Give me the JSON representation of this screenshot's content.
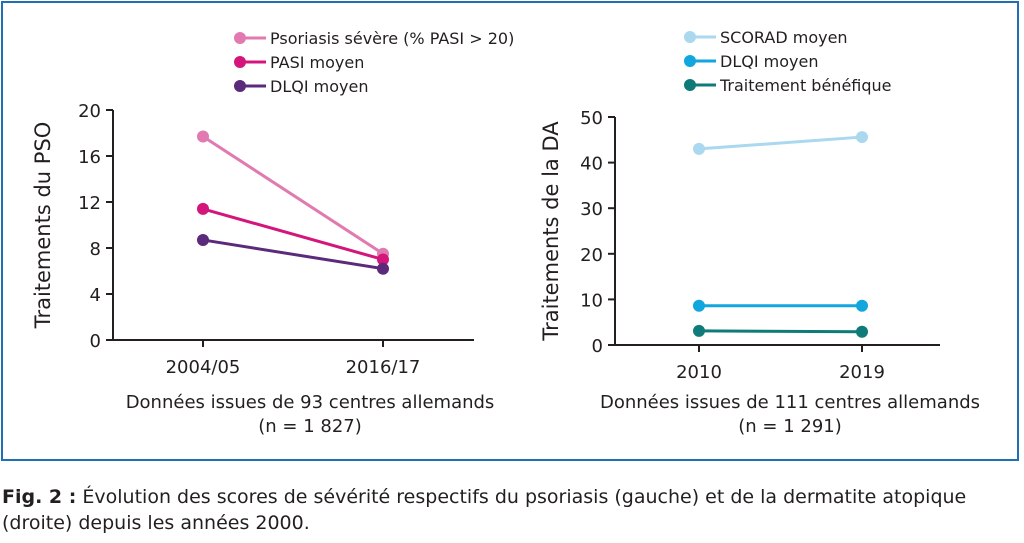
{
  "chart_data": [
    {
      "type": "line",
      "ylabel": "Traitements du PSO",
      "categories": [
        "2004/05",
        "2016/17"
      ],
      "ylim": [
        0,
        20
      ],
      "yticks": [
        0,
        4,
        8,
        12,
        16,
        20
      ],
      "legend_placement": "top",
      "series": [
        {
          "name": "Psoriasis sévère (% PASI > 20)",
          "color": "#e07ab0",
          "values": [
            17.7,
            7.5
          ]
        },
        {
          "name": "PASI moyen",
          "color": "#d4157c",
          "values": [
            11.4,
            7.0
          ]
        },
        {
          "name": "DLQI moyen",
          "color": "#5b2a7a",
          "values": [
            8.7,
            6.2
          ]
        }
      ],
      "subtitle_line1": "Données issues de 93 centres allemands",
      "subtitle_line2": "(n = 1 827)"
    },
    {
      "type": "line",
      "ylabel": "Traitements de la DA",
      "categories": [
        "2010",
        "2019"
      ],
      "ylim": [
        0,
        50
      ],
      "yticks": [
        0,
        10,
        20,
        30,
        40,
        50
      ],
      "legend_placement": "top",
      "series": [
        {
          "name": "SCORAD moyen",
          "color": "#a9d8ef",
          "values": [
            43.0,
            45.6
          ]
        },
        {
          "name": "DLQI moyen",
          "color": "#11a6de",
          "values": [
            8.6,
            8.6
          ]
        },
        {
          "name": "Traitement bénéfique",
          "color": "#0f7b78",
          "values": [
            3.1,
            2.9
          ]
        }
      ],
      "subtitle_line1": "Données issues de 111 centres allemands",
      "subtitle_line2": "(n = 1 291)"
    }
  ],
  "caption": {
    "label": "Fig. 2 :",
    "text": " Évolution des scores de sévérité respectifs du psoriasis (gauche) et de la dermatite atopique (droite) depuis les années 2000."
  }
}
